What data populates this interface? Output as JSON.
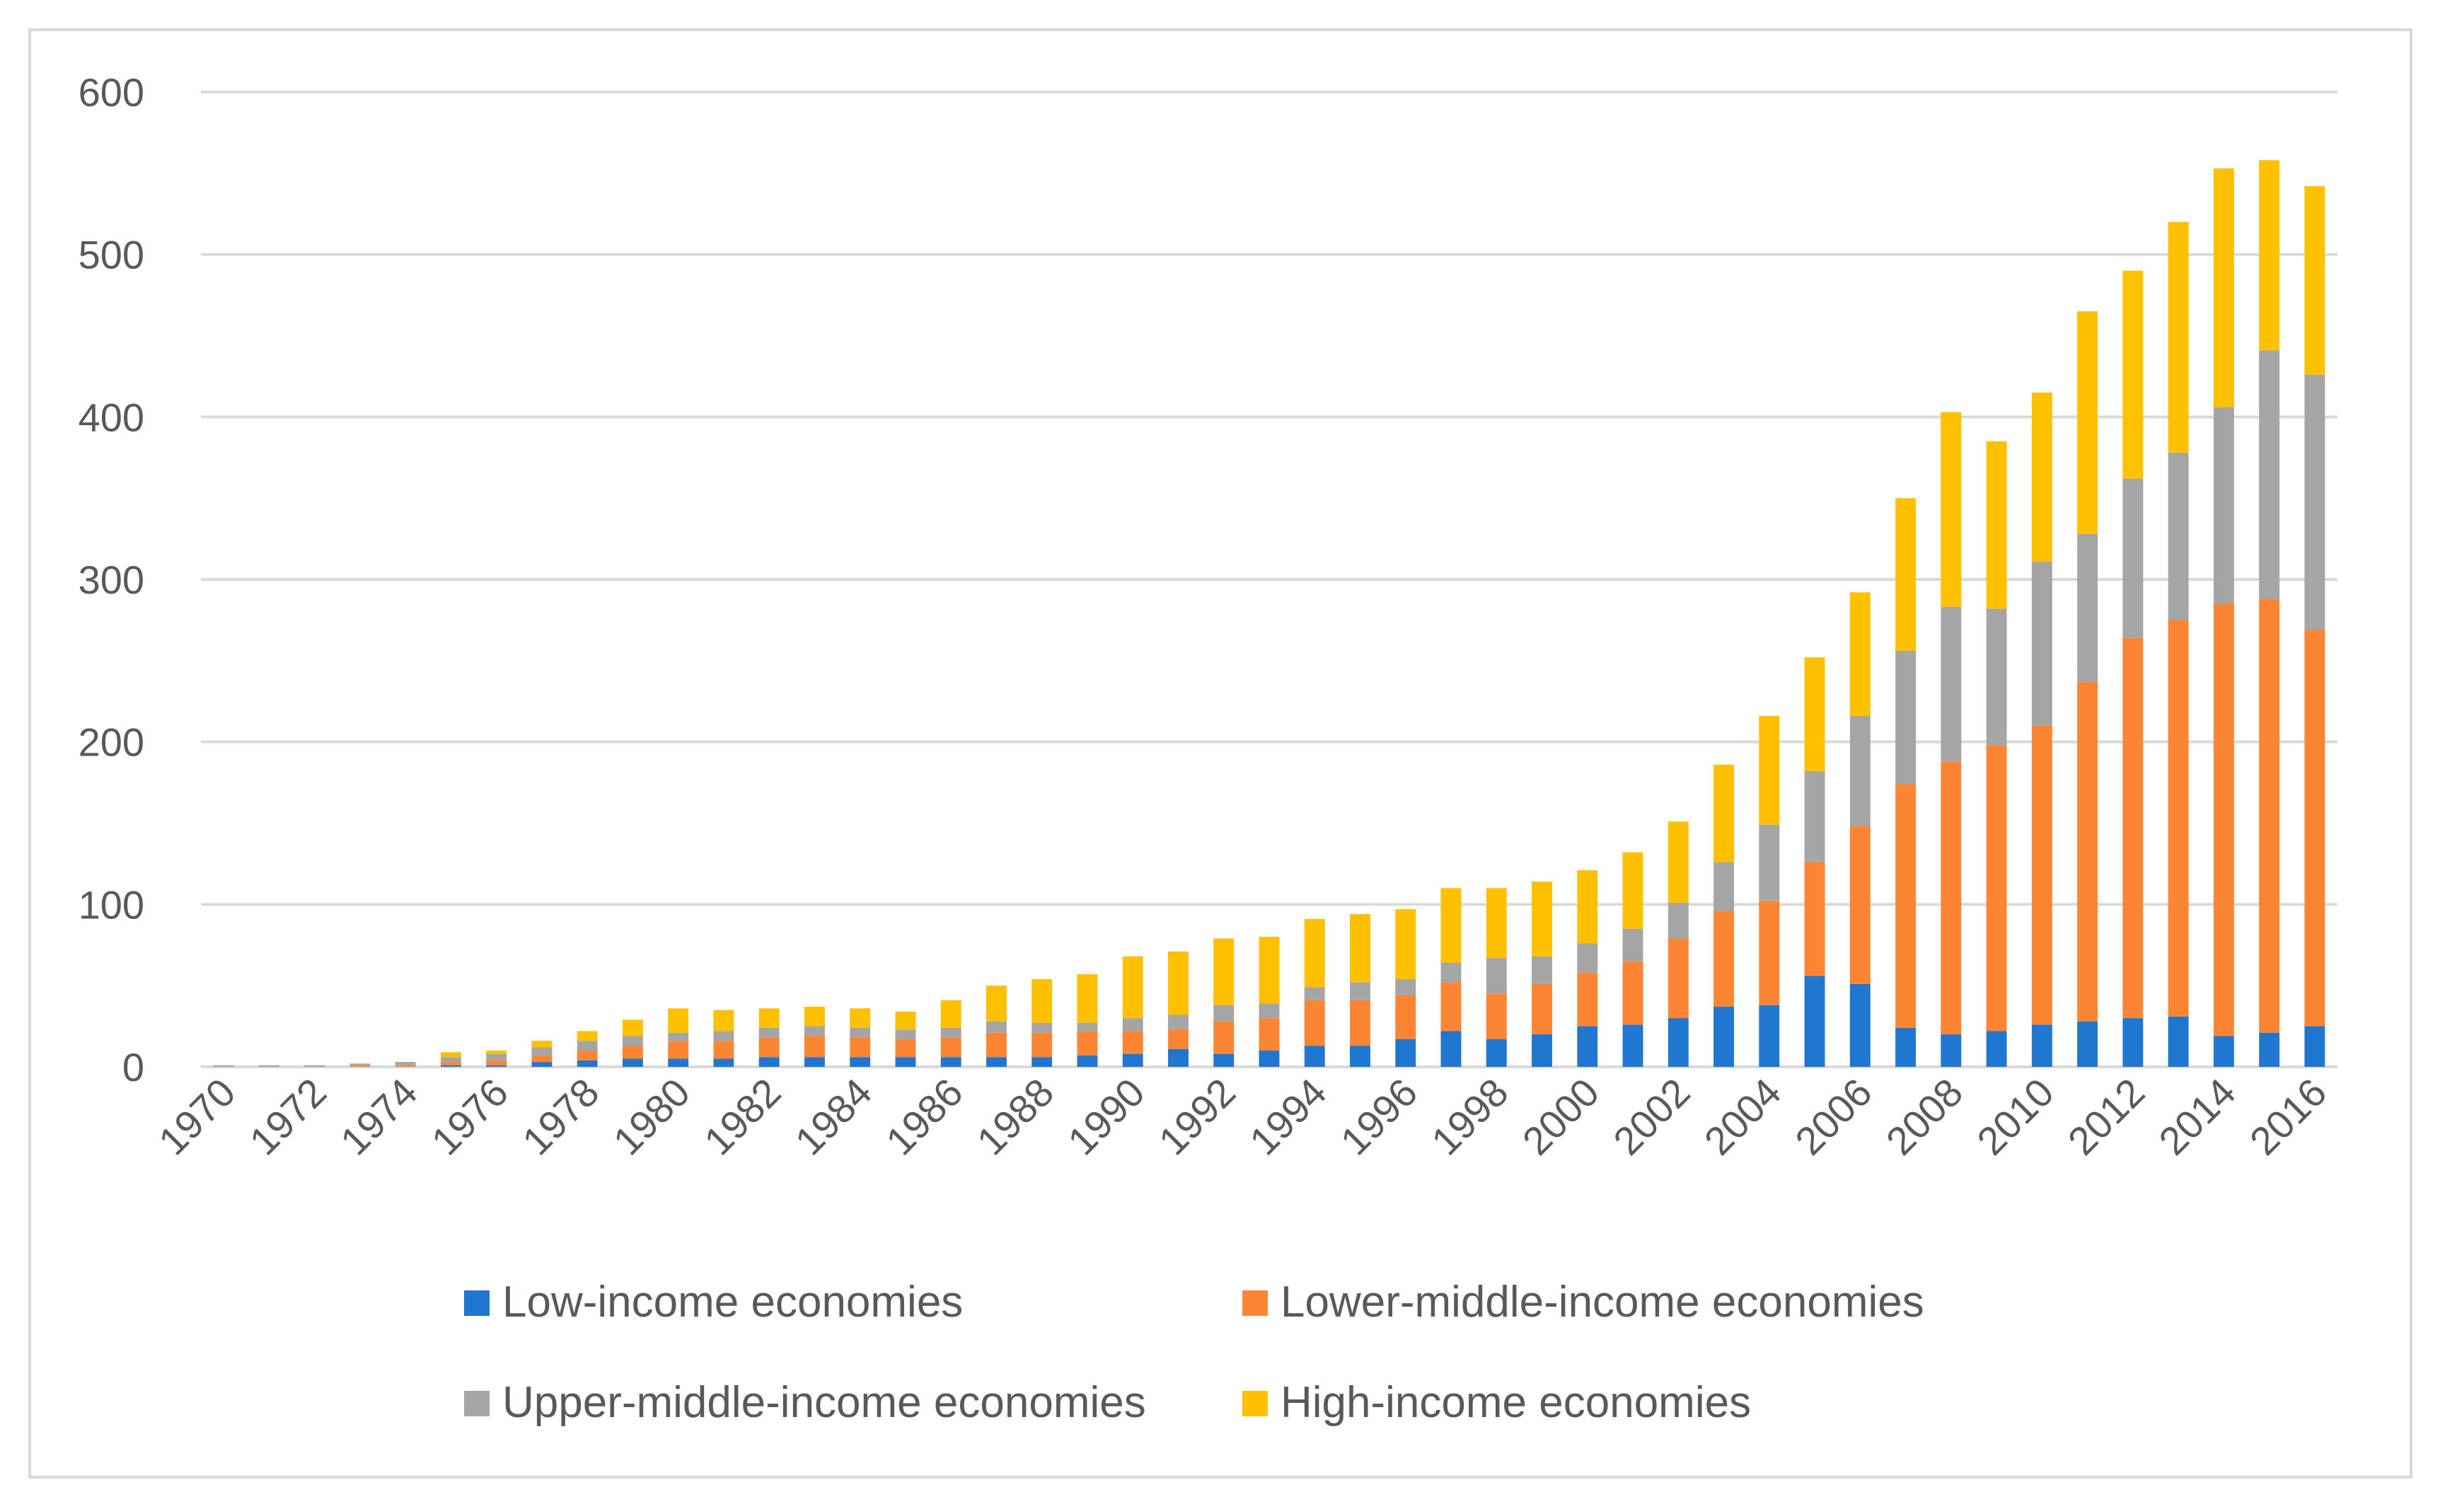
{
  "chart_data": {
    "type": "bar",
    "stacked": true,
    "title": "",
    "xlabel": "",
    "ylabel": "",
    "ylim": [
      0,
      600
    ],
    "yticks": [
      0,
      100,
      200,
      300,
      400,
      500,
      600
    ],
    "grid": true,
    "legend_position": "bottom",
    "x_tick_labels": [
      "1970",
      "1972",
      "1974",
      "1976",
      "1978",
      "1980",
      "1982",
      "1984",
      "1986",
      "1988",
      "1990",
      "1992",
      "1994",
      "1996",
      "1998",
      "2000",
      "2002",
      "2004",
      "2006",
      "2008",
      "2010",
      "2012",
      "2014",
      "2016"
    ],
    "categories": [
      "1970",
      "1971",
      "1972",
      "1973",
      "1974",
      "1975",
      "1976",
      "1977",
      "1978",
      "1979",
      "1980",
      "1981",
      "1982",
      "1983",
      "1984",
      "1985",
      "1986",
      "1987",
      "1988",
      "1989",
      "1990",
      "1991",
      "1992",
      "1993",
      "1994",
      "1995",
      "1996",
      "1997",
      "1998",
      "1999",
      "2000",
      "2001",
      "2002",
      "2003",
      "2004",
      "2005",
      "2006",
      "2007",
      "2008",
      "2009",
      "2010",
      "2011",
      "2012",
      "2013",
      "2014",
      "2015",
      "2016"
    ],
    "series": [
      {
        "name": "Low-income economies",
        "color": "#1f77d0",
        "values": [
          0,
          0,
          0,
          0,
          0,
          1,
          1,
          3,
          4,
          5,
          5,
          5,
          6,
          6,
          6,
          6,
          6,
          6,
          6,
          7,
          8,
          11,
          8,
          10,
          13,
          13,
          17,
          22,
          17,
          20,
          25,
          26,
          30,
          37,
          38,
          56,
          51,
          24,
          20,
          22,
          26,
          28,
          30,
          31,
          19,
          21,
          25
        ]
      },
      {
        "name": "Lower-middle-income economies",
        "color": "#fb8532",
        "values": [
          0,
          0,
          0,
          1,
          1,
          2,
          3,
          4,
          6,
          8,
          11,
          11,
          12,
          13,
          12,
          11,
          12,
          15,
          15,
          15,
          14,
          12,
          20,
          20,
          28,
          28,
          27,
          30,
          28,
          31,
          33,
          39,
          49,
          59,
          64,
          70,
          97,
          150,
          168,
          176,
          184,
          209,
          234,
          244,
          266,
          267,
          244
        ]
      },
      {
        "name": "Upper-middle-income economies",
        "color": "#a5a5a5",
        "values": [
          1,
          1,
          1,
          1,
          2,
          3,
          4,
          5,
          6,
          6,
          5,
          6,
          6,
          6,
          6,
          6,
          6,
          7,
          6,
          5,
          8,
          9,
          10,
          9,
          8,
          11,
          10,
          12,
          22,
          17,
          18,
          20,
          22,
          30,
          47,
          56,
          68,
          82,
          95,
          84,
          101,
          91,
          98,
          103,
          121,
          153,
          157
        ]
      },
      {
        "name": "High-income economies",
        "color": "#ffc000",
        "values": [
          0,
          0,
          0,
          0,
          0,
          3,
          2,
          4,
          6,
          10,
          15,
          13,
          12,
          12,
          12,
          11,
          17,
          22,
          27,
          30,
          38,
          39,
          41,
          41,
          42,
          42,
          43,
          46,
          43,
          46,
          45,
          47,
          50,
          60,
          67,
          70,
          76,
          94,
          120,
          103,
          104,
          137,
          128,
          142,
          147,
          117,
          116
        ]
      }
    ]
  }
}
